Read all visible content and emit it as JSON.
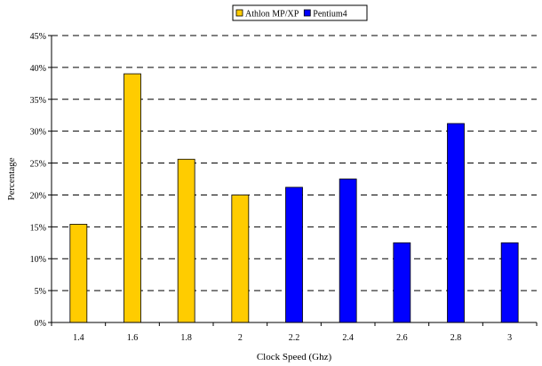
{
  "chart_data": {
    "type": "bar",
    "title": "",
    "xlabel": "Clock Speed (Ghz)",
    "ylabel": "Percentage",
    "categories": [
      "1.4",
      "1.6",
      "1.8",
      "2",
      "2.2",
      "2.4",
      "2.6",
      "2.8",
      "3"
    ],
    "series": [
      {
        "name": "Athlon MP/XP",
        "color": "#FFCC00",
        "values": [
          15.4,
          39.0,
          25.6,
          20.0,
          null,
          null,
          null,
          null,
          null
        ]
      },
      {
        "name": "Pentium4",
        "color": "#0000FF",
        "values": [
          null,
          null,
          null,
          null,
          21.2,
          22.5,
          12.5,
          31.2,
          12.5
        ]
      }
    ],
    "yticks": [
      "0%",
      "5%",
      "10%",
      "15%",
      "20%",
      "25%",
      "30%",
      "35%",
      "40%",
      "45%"
    ],
    "ylim": [
      0,
      45
    ],
    "grid": "horizontal dashed",
    "legend_position": "top-center"
  }
}
